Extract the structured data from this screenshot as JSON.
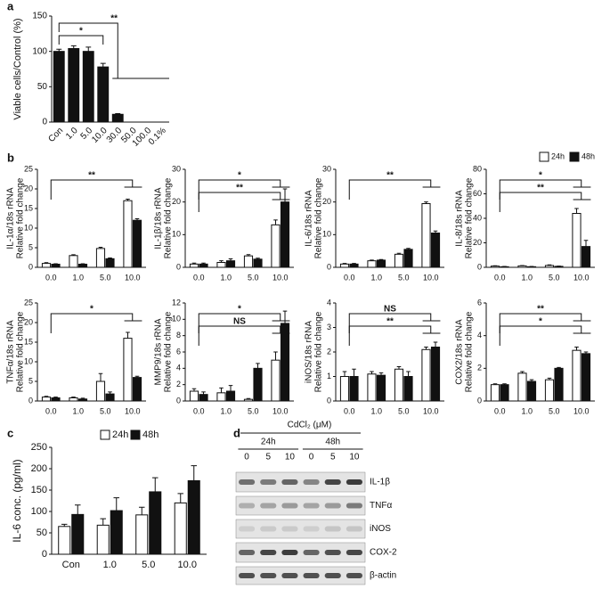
{
  "chart_data": [
    {
      "type": "bar",
      "panel_label": "a",
      "ylabel": "Viable cells/Control (%)",
      "categories": [
        "Con",
        "1.0",
        "5.0",
        "10.0",
        "30.0",
        "50.0",
        "100.0",
        "0.1%"
      ],
      "series": [
        {
          "color": "#111111",
          "values": [
            100,
            104,
            100,
            78,
            11,
            0,
            0,
            0
          ],
          "errors": [
            3,
            4,
            6,
            5,
            1,
            0,
            0,
            0
          ]
        }
      ],
      "ylim": [
        0,
        150
      ],
      "yticks": [
        0,
        50,
        100,
        150
      ],
      "annotations": [
        "**",
        "*"
      ]
    },
    {
      "type": "bar",
      "panel_label": "b",
      "ylabel": [
        "IL-1α/18s rRNA",
        "Relative fold change"
      ],
      "categories": [
        "0.0",
        "1.0",
        "5.0",
        "10.0"
      ],
      "series": [
        {
          "color": "#ffffff",
          "values": [
            1,
            3,
            4.8,
            17
          ],
          "errors": [
            0.2,
            0.2,
            0.3,
            0.4
          ]
        },
        {
          "color": "#111111",
          "values": [
            0.8,
            0.8,
            2.2,
            12
          ],
          "errors": [
            0.1,
            0.1,
            0.2,
            0.4
          ]
        }
      ],
      "ylim": [
        0,
        25
      ],
      "yticks": [
        0,
        5,
        10,
        15,
        20,
        25
      ],
      "annotations": [
        "**"
      ]
    },
    {
      "type": "bar",
      "ylabel": [
        "IL-1β/18s rRNA",
        "Relative fold change"
      ],
      "categories": [
        "0.0",
        "1.0",
        "5.0",
        "10.0"
      ],
      "series": [
        {
          "color": "#ffffff",
          "values": [
            1,
            1.5,
            3.5,
            13
          ],
          "errors": [
            0.3,
            0.5,
            0.4,
            1.5
          ]
        },
        {
          "color": "#111111",
          "values": [
            1,
            2,
            2.5,
            20
          ],
          "errors": [
            0.3,
            0.6,
            0.3,
            4
          ]
        }
      ],
      "ylim": [
        0,
        30
      ],
      "yticks": [
        0,
        10,
        20,
        30
      ],
      "annotations": [
        "*",
        "**"
      ]
    },
    {
      "type": "bar",
      "ylabel": [
        "IL-6/18s rRNA",
        "Relative fold change"
      ],
      "categories": [
        "0.0",
        "1.0",
        "5.0",
        "10.0"
      ],
      "series": [
        {
          "color": "#ffffff",
          "values": [
            1,
            2,
            4,
            19.5
          ],
          "errors": [
            0.2,
            0.2,
            0.3,
            0.5
          ]
        },
        {
          "color": "#111111",
          "values": [
            1,
            2.2,
            5.5,
            10.5
          ],
          "errors": [
            0.2,
            0.2,
            0.3,
            0.6
          ]
        }
      ],
      "ylim": [
        0,
        30
      ],
      "yticks": [
        0,
        10,
        20,
        30
      ],
      "annotations": [
        "**"
      ]
    },
    {
      "type": "bar",
      "ylabel": [
        "IL-8/18s rRNA",
        "Relative fold change"
      ],
      "legend": "top-right",
      "categories": [
        "0.0",
        "1.0",
        "5.0",
        "10.0"
      ],
      "series": [
        {
          "name": "24h",
          "color": "#ffffff",
          "values": [
            1,
            1.2,
            1.5,
            44
          ],
          "errors": [
            0.3,
            0.3,
            0.5,
            4
          ]
        },
        {
          "name": "48h",
          "color": "#111111",
          "values": [
            0.5,
            0.5,
            0.8,
            17
          ],
          "errors": [
            0.2,
            0.2,
            0.2,
            5
          ]
        }
      ],
      "ylim": [
        0,
        80
      ],
      "yticks": [
        0,
        20,
        40,
        60,
        80
      ],
      "annotations": [
        "*",
        "**"
      ]
    },
    {
      "type": "bar",
      "ylabel": [
        "TNFα/18s rRNA",
        "Relative fold change"
      ],
      "categories": [
        "0.0",
        "1.0",
        "5.0",
        "10.0"
      ],
      "series": [
        {
          "color": "#ffffff",
          "values": [
            1,
            0.8,
            5,
            16
          ],
          "errors": [
            0.2,
            0.2,
            2,
            1.5
          ]
        },
        {
          "color": "#111111",
          "values": [
            0.8,
            0.5,
            1.8,
            6
          ],
          "errors": [
            0.2,
            0.2,
            0.5,
            0.3
          ]
        }
      ],
      "ylim": [
        0,
        25
      ],
      "yticks": [
        0,
        5,
        10,
        15,
        20,
        25
      ],
      "annotations": [
        "*"
      ]
    },
    {
      "type": "bar",
      "ylabel": [
        "MMP9/18s rRNA",
        "Relative fold change"
      ],
      "categories": [
        "0.0",
        "1.0",
        "5.0",
        "10.0"
      ],
      "series": [
        {
          "color": "#ffffff",
          "values": [
            1.2,
            1,
            0.2,
            5
          ],
          "errors": [
            0.3,
            0.6,
            0.1,
            1
          ]
        },
        {
          "color": "#111111",
          "values": [
            0.8,
            1.2,
            4,
            9.5
          ],
          "errors": [
            0.3,
            0.7,
            0.6,
            1.5
          ]
        }
      ],
      "ylim": [
        0,
        12
      ],
      "yticks": [
        0,
        2,
        4,
        6,
        8,
        10,
        12
      ],
      "annotations": [
        "*",
        "NS"
      ]
    },
    {
      "type": "bar",
      "ylabel": [
        "iNOS/18s rRNA",
        "Relative fold change"
      ],
      "categories": [
        "0.0",
        "1.0",
        "5.0",
        "10.0"
      ],
      "series": [
        {
          "color": "#ffffff",
          "values": [
            1,
            1.1,
            1.3,
            2.1
          ],
          "errors": [
            0.2,
            0.1,
            0.1,
            0.1
          ]
        },
        {
          "color": "#111111",
          "values": [
            1,
            1.05,
            1,
            2.2
          ],
          "errors": [
            0.3,
            0.1,
            0.2,
            0.2
          ]
        }
      ],
      "ylim": [
        0,
        4
      ],
      "yticks": [
        0,
        1,
        2,
        3,
        4
      ],
      "annotations": [
        "NS",
        "**"
      ]
    },
    {
      "type": "bar",
      "ylabel": [
        "COX2/18s rRNA",
        "Relative fold change"
      ],
      "categories": [
        "0.0",
        "1.0",
        "5.0",
        "10.0"
      ],
      "series": [
        {
          "color": "#ffffff",
          "values": [
            1,
            1.7,
            1.3,
            3.1
          ],
          "errors": [
            0.05,
            0.1,
            0.1,
            0.2
          ]
        },
        {
          "color": "#111111",
          "values": [
            1,
            1.2,
            2,
            2.9
          ],
          "errors": [
            0.05,
            0.1,
            0.05,
            0.1
          ]
        }
      ],
      "ylim": [
        0,
        6
      ],
      "yticks": [
        0,
        2,
        4,
        6
      ],
      "annotations": [
        "**",
        "*"
      ]
    },
    {
      "type": "bar",
      "panel_label": "c",
      "ylabel": "IL-6 conc. (pg/ml)",
      "legend": "top",
      "categories": [
        "Con",
        "1.0",
        "5.0",
        "10.0"
      ],
      "series": [
        {
          "name": "24h",
          "color": "#ffffff",
          "values": [
            65,
            68,
            92,
            120
          ],
          "errors": [
            5,
            15,
            18,
            22
          ]
        },
        {
          "name": "48h",
          "color": "#111111",
          "values": [
            93,
            102,
            146,
            172
          ],
          "errors": [
            22,
            30,
            33,
            35
          ]
        }
      ],
      "ylim": [
        0,
        250
      ],
      "yticks": [
        0,
        50,
        100,
        150,
        200,
        250
      ]
    },
    {
      "type": "blot",
      "panel_label": "d",
      "title": "CdCl₂ (μM)",
      "groups": [
        "24h",
        "48h"
      ],
      "lanes": [
        "0",
        "5",
        "10",
        "0",
        "5",
        "10"
      ],
      "proteins": [
        "IL-1β",
        "TNFα",
        "iNOS",
        "COX-2",
        "β-actin"
      ]
    }
  ]
}
